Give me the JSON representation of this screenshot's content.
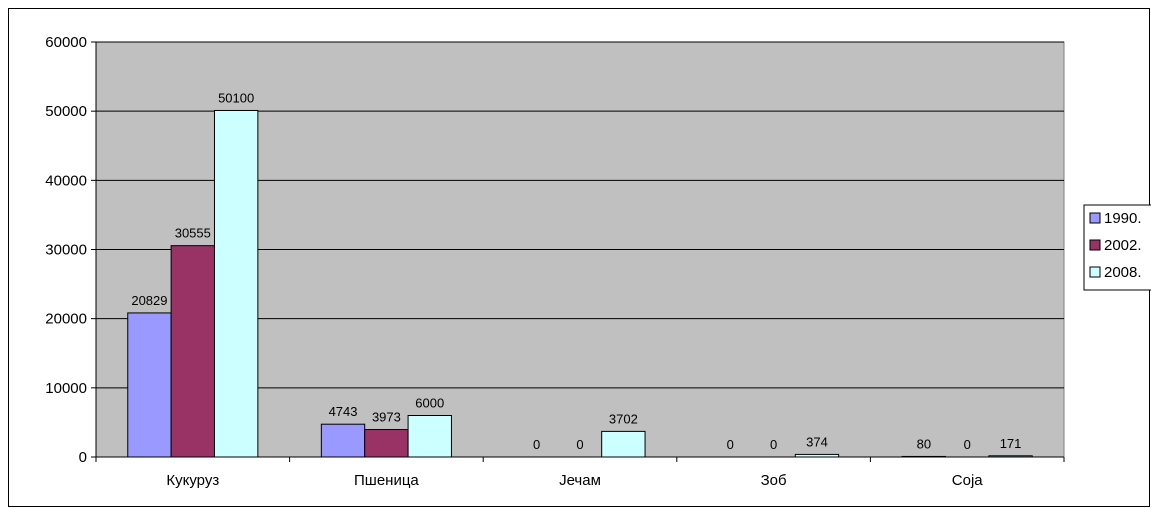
{
  "chart_data": {
    "type": "bar",
    "categories": [
      "Кукуруз",
      "Пшеница",
      "Јечам",
      "Зоб",
      "Соја"
    ],
    "series": [
      {
        "name": "1990.",
        "values": [
          20829,
          4743,
          0,
          0,
          80
        ],
        "color": "#9999ff"
      },
      {
        "name": "2002.",
        "values": [
          30555,
          3973,
          0,
          0,
          0
        ],
        "color": "#993366"
      },
      {
        "name": "2008.",
        "values": [
          50100,
          6000,
          3702,
          374,
          171
        ],
        "color": "#ccffff"
      }
    ],
    "ylim": [
      0,
      60000
    ],
    "yticks": [
      0,
      10000,
      20000,
      30000,
      40000,
      50000,
      60000
    ],
    "grid": true,
    "plot_background": "#c0c0c0",
    "legend_position": "right"
  }
}
